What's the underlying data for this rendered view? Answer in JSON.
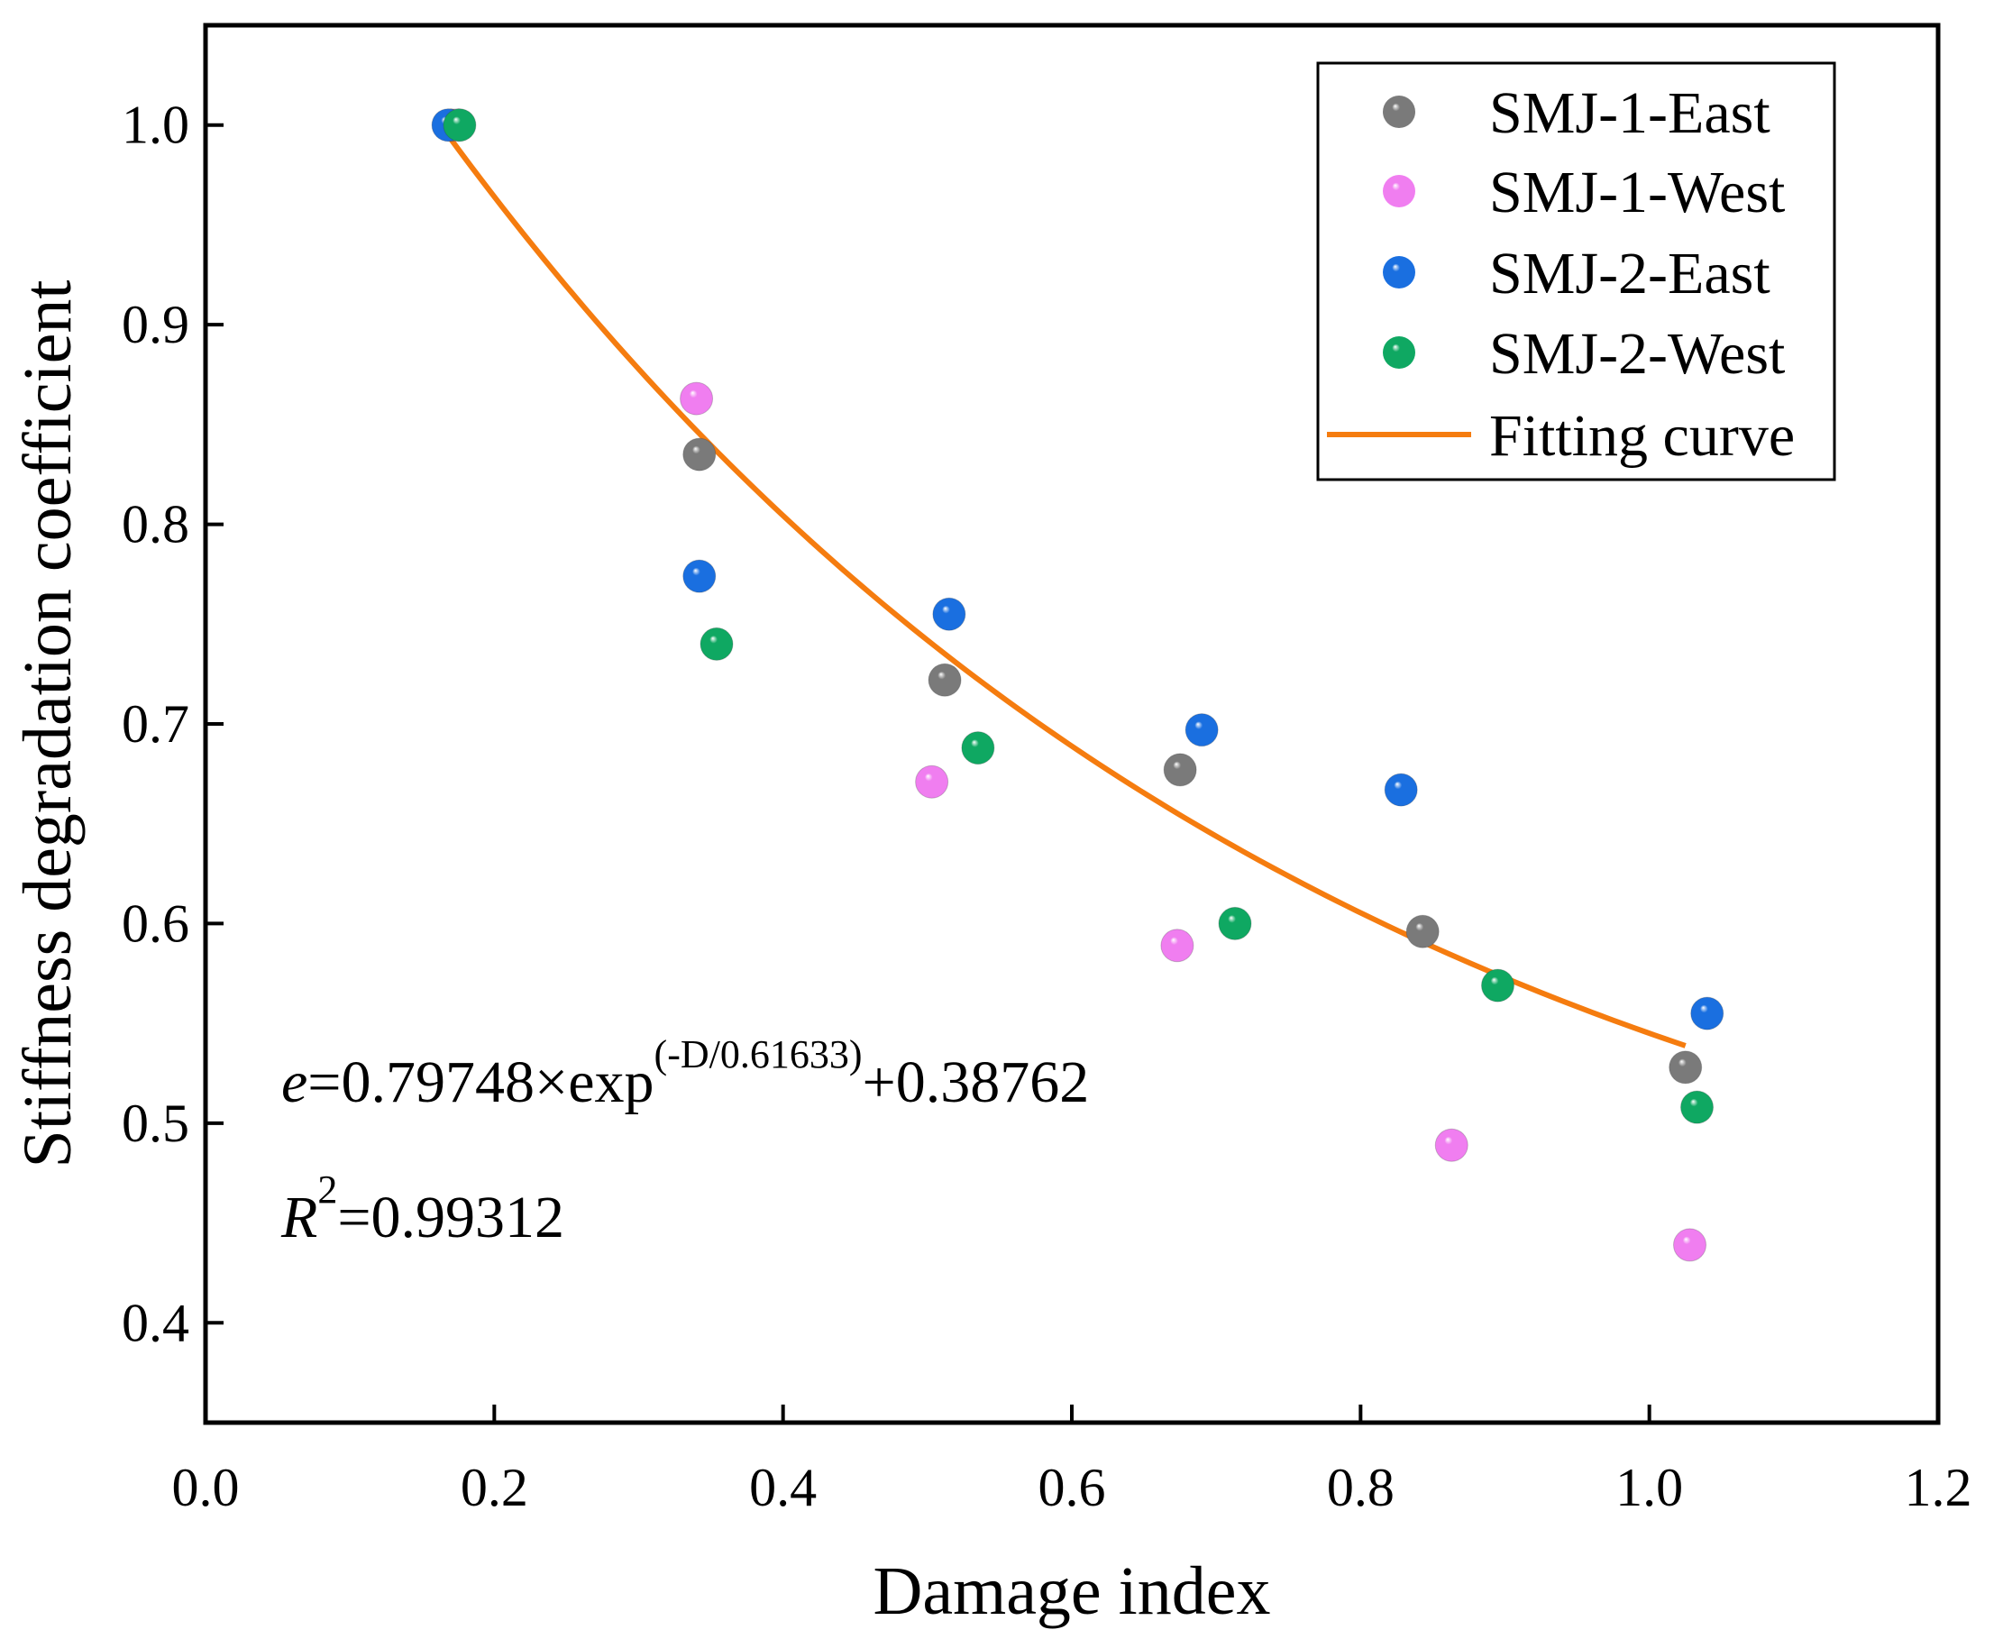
{
  "chart_data": {
    "type": "scatter",
    "xlabel": "Damage index",
    "ylabel": "Stiffness degradation coefficient",
    "xlim": [
      0.0,
      1.2
    ],
    "ylim": [
      0.35,
      1.05
    ],
    "x_ticks": [
      "0.0",
      "0.2",
      "0.4",
      "0.6",
      "0.8",
      "1.0",
      "1.2"
    ],
    "y_ticks": [
      "0.4",
      "0.5",
      "0.6",
      "0.7",
      "0.8",
      "0.9",
      "1.0"
    ],
    "grid": false,
    "legend_position": "top-right",
    "series": [
      {
        "name": "SMJ-1-East",
        "color": "#7a7a7a",
        "points": [
          [
            0.17,
            1.0
          ],
          [
            0.342,
            0.835
          ],
          [
            0.512,
            0.722
          ],
          [
            0.675,
            0.677
          ],
          [
            0.843,
            0.596
          ],
          [
            1.025,
            0.528
          ]
        ]
      },
      {
        "name": "SMJ-1-West",
        "color": "#f07ef0",
        "points": [
          [
            0.175,
            1.0
          ],
          [
            0.34,
            0.863
          ],
          [
            0.503,
            0.671
          ],
          [
            0.673,
            0.589
          ],
          [
            0.863,
            0.489
          ],
          [
            1.028,
            0.439
          ]
        ]
      },
      {
        "name": "SMJ-2-East",
        "color": "#1a6fe0",
        "points": [
          [
            0.168,
            1.0
          ],
          [
            0.342,
            0.774
          ],
          [
            0.515,
            0.755
          ],
          [
            0.69,
            0.697
          ],
          [
            0.828,
            0.667
          ],
          [
            1.04,
            0.555
          ]
        ]
      },
      {
        "name": "SMJ-2-West",
        "color": "#0fa862",
        "points": [
          [
            0.176,
            1.0
          ],
          [
            0.354,
            0.74
          ],
          [
            0.535,
            0.688
          ],
          [
            0.713,
            0.6
          ],
          [
            0.895,
            0.569
          ],
          [
            1.033,
            0.508
          ]
        ]
      }
    ],
    "fit": {
      "name": "Fitting curve",
      "color": "#f57c0f",
      "A": 0.79748,
      "t": 0.61633,
      "y0": 0.38762,
      "x_range": [
        0.17,
        1.025
      ]
    },
    "annotations": {
      "equation_var": "e",
      "equation_main": "=0.79748×exp",
      "equation_exponent": "(-D/0.61633)",
      "equation_tail": "+0.38762",
      "r2_var": "R",
      "r2_exponent": "2",
      "r2_value": "=0.99312"
    }
  }
}
